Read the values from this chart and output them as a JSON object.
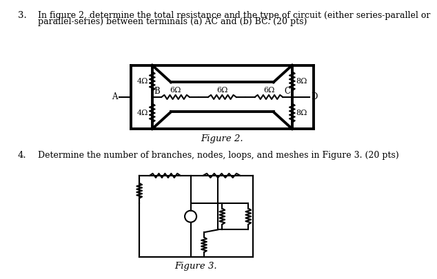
{
  "background_color": "#ffffff",
  "text_color": "#000000",
  "q3_num": "3.",
  "q3_line1": "In figure 2, determine the total resistance and the type of circuit (either series-parallel or",
  "q3_line2": "parallel-series) between terminals (a) AC and (b) BC. (20 pts)",
  "fig2_caption": "Figure 2.",
  "q4_num": "4.",
  "q4_line": "Determine the number of branches, nodes, loops, and meshes in Figure 3. (20 pts)",
  "fig3_caption": "Figure 3.",
  "line_color": "#000000",
  "lw_thin": 1.5,
  "lw_thick": 2.8
}
